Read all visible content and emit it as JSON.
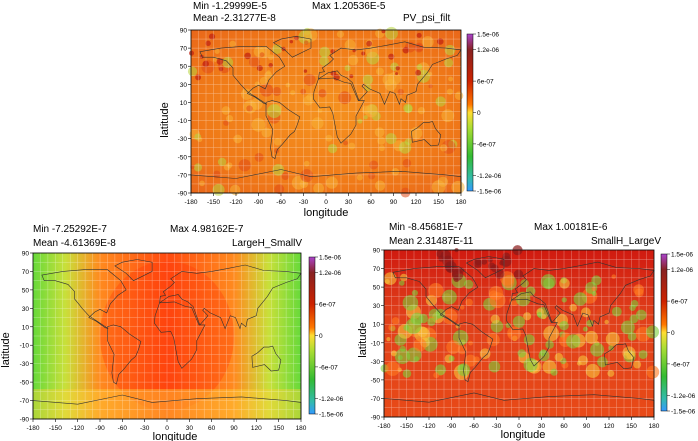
{
  "chart_data": [
    {
      "type": "heatmap",
      "name": "PV_psi_filt",
      "stats": {
        "min": "Min -1.29999E-5",
        "max": "Max 1.20536E-5",
        "mean": "Mean -2.31277E-8"
      },
      "xlabel": "longitude",
      "ylabel": "latitude",
      "xlim": [
        -180,
        180
      ],
      "ylim": [
        -90,
        90
      ],
      "xticks": [
        "-180",
        "-150",
        "-120",
        "-90",
        "-60",
        "-30",
        "0",
        "30",
        "60",
        "90",
        "120",
        "150",
        "180"
      ],
      "yticks": [
        "90",
        "70",
        "50",
        "30",
        "10",
        "-10",
        "-30",
        "-50",
        "-70",
        "-90"
      ],
      "colorbar_ticks": [
        "1.5e-06",
        "1.2e-06",
        "6e-07",
        "0",
        "-6e-07",
        "-1.2e-06",
        "-1.5e-06"
      ],
      "colorbar_range": [
        -1.5e-06,
        1.5e-06
      ],
      "grid": true
    },
    {
      "type": "heatmap",
      "name": "LargeH_SmallV",
      "stats": {
        "min": "Min -7.25292E-7",
        "max": "Max 4.98162E-7",
        "mean": "Mean -4.61369E-8"
      },
      "xlabel": "longitude",
      "ylabel": "latitude",
      "xlim": [
        -180,
        180
      ],
      "ylim": [
        -90,
        90
      ],
      "xticks": [
        "-180",
        "-150",
        "-120",
        "-90",
        "-60",
        "-30",
        "0",
        "30",
        "60",
        "90",
        "120",
        "150",
        "180"
      ],
      "yticks": [
        "90",
        "70",
        "50",
        "30",
        "10",
        "-10",
        "-30",
        "-50",
        "-70",
        "-90"
      ],
      "colorbar_ticks": [
        "1.5e-06",
        "1.2e-06",
        "6e-07",
        "0",
        "-6e-07",
        "-1.2e-06",
        "-1.5e-06"
      ],
      "colorbar_range": [
        -1.5e-06,
        1.5e-06
      ],
      "grid": true
    },
    {
      "type": "heatmap",
      "name": "SmallH_LargeV",
      "stats": {
        "min": "Min -8.45681E-7",
        "max": "Max 1.00181E-6",
        "mean": "Mean 2.31487E-11"
      },
      "xlabel": "longitude",
      "ylabel": "latitude",
      "xlim": [
        -180,
        180
      ],
      "ylim": [
        -90,
        90
      ],
      "xticks": [
        "-180",
        "-150",
        "-120",
        "-90",
        "-60",
        "-30",
        "0",
        "30",
        "60",
        "90",
        "120",
        "150",
        "180"
      ],
      "yticks": [
        "90",
        "70",
        "50",
        "30",
        "10",
        "-10",
        "-30",
        "-50",
        "-70",
        "-90"
      ],
      "colorbar_ticks": [
        "1.5e-06",
        "1.2e-06",
        "6e-07",
        "0",
        "-6e-07",
        "-1.2e-06",
        "-1.5e-06"
      ],
      "colorbar_range": [
        -1.5e-06,
        1.5e-06
      ],
      "grid": true
    }
  ],
  "colors": {
    "positive_high": "#cc2200",
    "positive_mid": "#ff7700",
    "zero": "#ffdd33",
    "negative": "#66cc33",
    "colorbar_top": "#aa44cc",
    "colorbar_bottom": "#3399ff"
  }
}
